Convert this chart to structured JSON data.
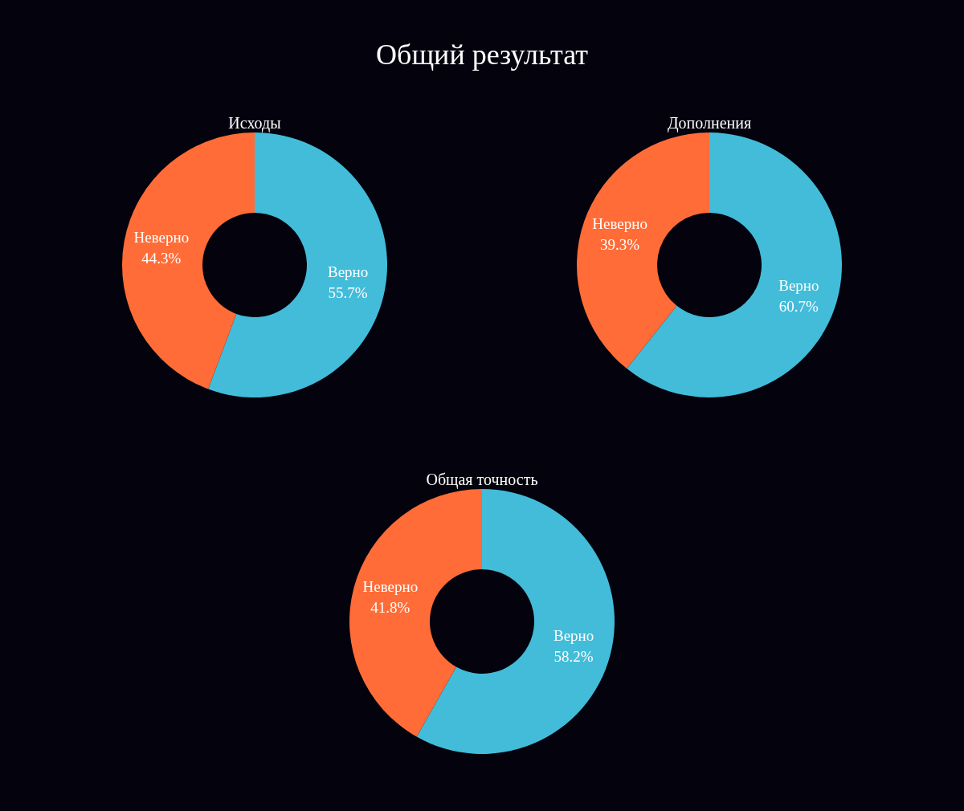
{
  "chart_data": [
    {
      "type": "other",
      "title": "Общий результат"
    },
    {
      "type": "donut",
      "title": "Исходы",
      "categories": [
        "Верно",
        "Неверно"
      ],
      "values": [
        55.7,
        44.3
      ],
      "value_labels": [
        "55.7%",
        "44.3%"
      ],
      "colors": [
        "#42bcd9",
        "#ff6c37"
      ]
    },
    {
      "type": "donut",
      "title": "Дополнения",
      "categories": [
        "Верно",
        "Неверно"
      ],
      "values": [
        60.7,
        39.3
      ],
      "value_labels": [
        "60.7%",
        "39.3%"
      ],
      "colors": [
        "#42bcd9",
        "#ff6c37"
      ]
    },
    {
      "type": "donut",
      "title": "Общая точность",
      "categories": [
        "Верно",
        "Неверно"
      ],
      "values": [
        58.2,
        41.8
      ],
      "value_labels": [
        "58.2%",
        "41.8%"
      ],
      "colors": [
        "#42bcd9",
        "#ff6c37"
      ]
    }
  ]
}
